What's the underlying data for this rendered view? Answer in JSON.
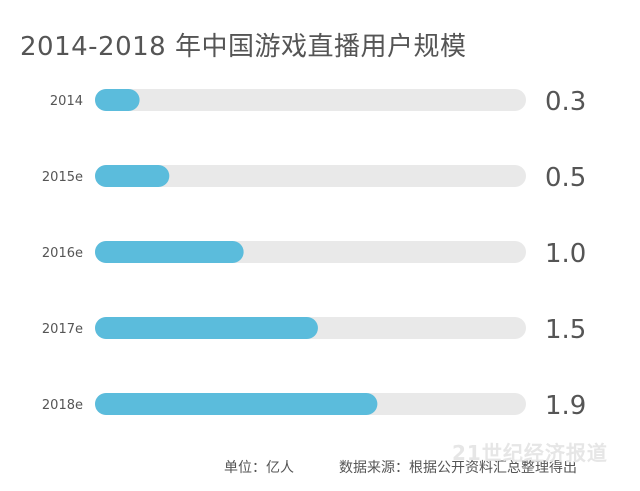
{
  "title": "2014-2018 年中国游戏直播用户规模",
  "footer": {
    "unit": "单位：亿人",
    "source": "数据来源：根据公开资料汇总整理得出"
  },
  "watermark": "21世纪经济报道",
  "colors": {
    "bar_fill": "#5bbcdc",
    "bar_track": "#e9e9e9",
    "label_text": "#555555",
    "value_text": "#555555"
  },
  "chart_data": {
    "type": "bar",
    "orientation": "horizontal",
    "title": "2014-2018 年中国游戏直播用户规模",
    "unit": "亿人",
    "categories": [
      "2014",
      "2015e",
      "2016e",
      "2017e",
      "2018e"
    ],
    "values": [
      0.3,
      0.5,
      1.0,
      1.5,
      1.9
    ],
    "value_labels": [
      "0.3",
      "0.5",
      "1.0",
      "1.5",
      "1.9"
    ],
    "xlim": [
      0,
      2.9
    ],
    "grid": false,
    "legend": "none"
  }
}
